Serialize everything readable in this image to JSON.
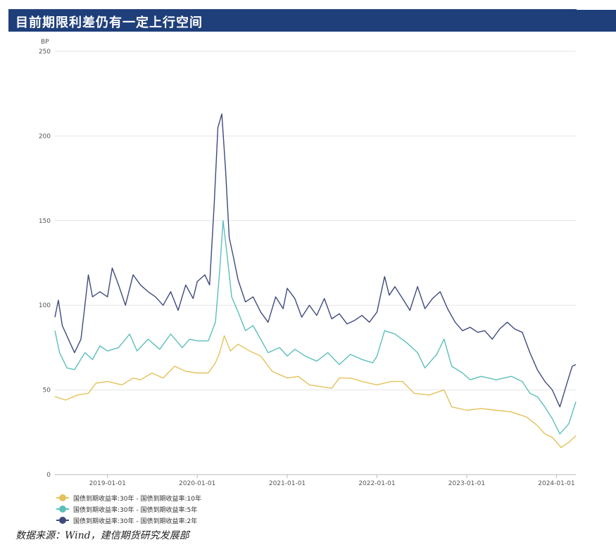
{
  "header": {
    "title": "目前期限利差仍有一定上行空间"
  },
  "source": "数据来源：Wind，建信期货研究发展部",
  "colors": {
    "header_bg": "#1f3f7a",
    "s10y": "#e3c25a",
    "s5y": "#5cbfbc",
    "s2y": "#3f4a7e",
    "grid": "#e6e6e6"
  },
  "chart_data": {
    "type": "line",
    "ylabel": "BP",
    "ylim": [
      0,
      250
    ],
    "yticks": [
      0,
      50,
      100,
      150,
      200,
      250
    ],
    "xlim": [
      "2018-06-01",
      "2024-03-20"
    ],
    "xticks": [
      "2019-01-01",
      "2020-01-01",
      "2021-01-01",
      "2022-01-01",
      "2023-01-01",
      "2024-01-01"
    ],
    "grid": true,
    "legend_position": "bottom-left",
    "series": [
      {
        "name": "国债到期收益率:30年 - 国债到期收益率:10年",
        "color": "#e3c25a",
        "points": [
          [
            "2018-06-01",
            46
          ],
          [
            "2018-07-15",
            44
          ],
          [
            "2018-09-01",
            47
          ],
          [
            "2018-10-15",
            48
          ],
          [
            "2018-11-15",
            54
          ],
          [
            "2019-01-01",
            55
          ],
          [
            "2019-03-01",
            53
          ],
          [
            "2019-04-15",
            57
          ],
          [
            "2019-05-15",
            56
          ],
          [
            "2019-07-01",
            60
          ],
          [
            "2019-08-15",
            57
          ],
          [
            "2019-10-01",
            64
          ],
          [
            "2019-11-15",
            61
          ],
          [
            "2020-01-01",
            60
          ],
          [
            "2020-02-15",
            60
          ],
          [
            "2020-03-15",
            66
          ],
          [
            "2020-04-01",
            72
          ],
          [
            "2020-04-20",
            82
          ],
          [
            "2020-05-15",
            73
          ],
          [
            "2020-06-15",
            77
          ],
          [
            "2020-08-01",
            73
          ],
          [
            "2020-09-15",
            70
          ],
          [
            "2020-11-01",
            61
          ],
          [
            "2021-01-01",
            57
          ],
          [
            "2021-02-15",
            58
          ],
          [
            "2021-04-01",
            53
          ],
          [
            "2021-05-15",
            52
          ],
          [
            "2021-07-01",
            51
          ],
          [
            "2021-08-01",
            57
          ],
          [
            "2021-09-15",
            57
          ],
          [
            "2021-11-01",
            55
          ],
          [
            "2022-01-01",
            53
          ],
          [
            "2022-03-01",
            55
          ],
          [
            "2022-04-15",
            55
          ],
          [
            "2022-06-01",
            48
          ],
          [
            "2022-08-01",
            47
          ],
          [
            "2022-10-01",
            50
          ],
          [
            "2022-11-01",
            40
          ],
          [
            "2023-01-01",
            38
          ],
          [
            "2023-03-01",
            39
          ],
          [
            "2023-05-01",
            38
          ],
          [
            "2023-07-01",
            37
          ],
          [
            "2023-09-01",
            34
          ],
          [
            "2023-10-15",
            29
          ],
          [
            "2023-11-15",
            24
          ],
          [
            "2023-12-15",
            22
          ],
          [
            "2024-01-20",
            16
          ],
          [
            "2024-02-20",
            19
          ],
          [
            "2024-03-20",
            23
          ]
        ]
      },
      {
        "name": "国债到期收益率:30年 - 国债到期收益率:5年",
        "color": "#5cbfbc",
        "points": [
          [
            "2018-06-01",
            85
          ],
          [
            "2018-06-20",
            72
          ],
          [
            "2018-07-20",
            63
          ],
          [
            "2018-08-20",
            62
          ],
          [
            "2018-10-01",
            72
          ],
          [
            "2018-11-01",
            68
          ],
          [
            "2018-12-01",
            76
          ],
          [
            "2019-01-01",
            73
          ],
          [
            "2019-02-15",
            75
          ],
          [
            "2019-04-01",
            83
          ],
          [
            "2019-05-01",
            73
          ],
          [
            "2019-06-15",
            80
          ],
          [
            "2019-08-01",
            74
          ],
          [
            "2019-09-15",
            83
          ],
          [
            "2019-11-01",
            75
          ],
          [
            "2019-12-01",
            80
          ],
          [
            "2020-01-01",
            79
          ],
          [
            "2020-02-15",
            79
          ],
          [
            "2020-03-15",
            90
          ],
          [
            "2020-04-01",
            120
          ],
          [
            "2020-04-15",
            150
          ],
          [
            "2020-05-01",
            130
          ],
          [
            "2020-05-20",
            105
          ],
          [
            "2020-06-15",
            96
          ],
          [
            "2020-07-15",
            85
          ],
          [
            "2020-08-15",
            88
          ],
          [
            "2020-09-15",
            80
          ],
          [
            "2020-10-15",
            72
          ],
          [
            "2020-12-01",
            75
          ],
          [
            "2021-01-01",
            70
          ],
          [
            "2021-02-01",
            74
          ],
          [
            "2021-03-15",
            70
          ],
          [
            "2021-05-01",
            67
          ],
          [
            "2021-06-15",
            72
          ],
          [
            "2021-08-01",
            65
          ],
          [
            "2021-09-15",
            71
          ],
          [
            "2021-11-01",
            68
          ],
          [
            "2021-12-15",
            66
          ],
          [
            "2022-01-01",
            70
          ],
          [
            "2022-02-01",
            85
          ],
          [
            "2022-03-15",
            83
          ],
          [
            "2022-05-01",
            78
          ],
          [
            "2022-06-15",
            72
          ],
          [
            "2022-07-15",
            63
          ],
          [
            "2022-09-01",
            71
          ],
          [
            "2022-10-01",
            80
          ],
          [
            "2022-11-01",
            64
          ],
          [
            "2022-12-15",
            60
          ],
          [
            "2023-01-15",
            56
          ],
          [
            "2023-03-01",
            58
          ],
          [
            "2023-05-01",
            56
          ],
          [
            "2023-07-01",
            58
          ],
          [
            "2023-08-15",
            55
          ],
          [
            "2023-09-15",
            48
          ],
          [
            "2023-10-15",
            46
          ],
          [
            "2023-11-15",
            40
          ],
          [
            "2023-12-15",
            33
          ],
          [
            "2024-01-15",
            24
          ],
          [
            "2024-02-20",
            30
          ],
          [
            "2024-03-20",
            43
          ]
        ]
      },
      {
        "name": "国债到期收益率:30年 - 国债到期收益率:2年",
        "color": "#3f4a7e",
        "points": [
          [
            "2018-06-01",
            93
          ],
          [
            "2018-06-15",
            103
          ],
          [
            "2018-07-01",
            88
          ],
          [
            "2018-08-01",
            78
          ],
          [
            "2018-08-20",
            72
          ],
          [
            "2018-09-15",
            80
          ],
          [
            "2018-10-01",
            100
          ],
          [
            "2018-10-15",
            118
          ],
          [
            "2018-11-01",
            105
          ],
          [
            "2018-12-01",
            108
          ],
          [
            "2019-01-01",
            105
          ],
          [
            "2019-01-20",
            122
          ],
          [
            "2019-02-15",
            112
          ],
          [
            "2019-03-15",
            100
          ],
          [
            "2019-04-15",
            118
          ],
          [
            "2019-05-15",
            112
          ],
          [
            "2019-06-15",
            108
          ],
          [
            "2019-07-15",
            105
          ],
          [
            "2019-08-15",
            100
          ],
          [
            "2019-09-15",
            108
          ],
          [
            "2019-10-15",
            97
          ],
          [
            "2019-11-15",
            112
          ],
          [
            "2019-12-15",
            104
          ],
          [
            "2020-01-01",
            114
          ],
          [
            "2020-02-01",
            118
          ],
          [
            "2020-02-20",
            112
          ],
          [
            "2020-03-10",
            160
          ],
          [
            "2020-03-25",
            205
          ],
          [
            "2020-04-10",
            213
          ],
          [
            "2020-04-25",
            180
          ],
          [
            "2020-05-10",
            140
          ],
          [
            "2020-05-25",
            130
          ],
          [
            "2020-06-15",
            115
          ],
          [
            "2020-07-15",
            102
          ],
          [
            "2020-08-15",
            105
          ],
          [
            "2020-09-15",
            96
          ],
          [
            "2020-10-15",
            90
          ],
          [
            "2020-11-15",
            105
          ],
          [
            "2020-12-15",
            98
          ],
          [
            "2021-01-01",
            110
          ],
          [
            "2021-02-01",
            104
          ],
          [
            "2021-03-01",
            93
          ],
          [
            "2021-04-01",
            100
          ],
          [
            "2021-05-01",
            94
          ],
          [
            "2021-06-01",
            104
          ],
          [
            "2021-07-01",
            92
          ],
          [
            "2021-08-01",
            95
          ],
          [
            "2021-09-01",
            89
          ],
          [
            "2021-10-01",
            91
          ],
          [
            "2021-11-01",
            94
          ],
          [
            "2021-12-01",
            90
          ],
          [
            "2022-01-01",
            96
          ],
          [
            "2022-02-01",
            117
          ],
          [
            "2022-02-20",
            106
          ],
          [
            "2022-03-15",
            111
          ],
          [
            "2022-04-15",
            104
          ],
          [
            "2022-05-15",
            97
          ],
          [
            "2022-06-15",
            111
          ],
          [
            "2022-07-15",
            98
          ],
          [
            "2022-08-15",
            104
          ],
          [
            "2022-09-15",
            108
          ],
          [
            "2022-10-15",
            98
          ],
          [
            "2022-11-15",
            90
          ],
          [
            "2022-12-15",
            85
          ],
          [
            "2023-01-15",
            87
          ],
          [
            "2023-02-15",
            84
          ],
          [
            "2023-03-15",
            85
          ],
          [
            "2023-04-15",
            80
          ],
          [
            "2023-05-15",
            86
          ],
          [
            "2023-06-15",
            90
          ],
          [
            "2023-07-15",
            86
          ],
          [
            "2023-08-15",
            84
          ],
          [
            "2023-09-15",
            72
          ],
          [
            "2023-10-15",
            62
          ],
          [
            "2023-11-15",
            55
          ],
          [
            "2023-12-15",
            50
          ],
          [
            "2024-01-15",
            40
          ],
          [
            "2024-02-15",
            55
          ],
          [
            "2024-03-05",
            64
          ],
          [
            "2024-03-20",
            65
          ]
        ]
      }
    ]
  }
}
